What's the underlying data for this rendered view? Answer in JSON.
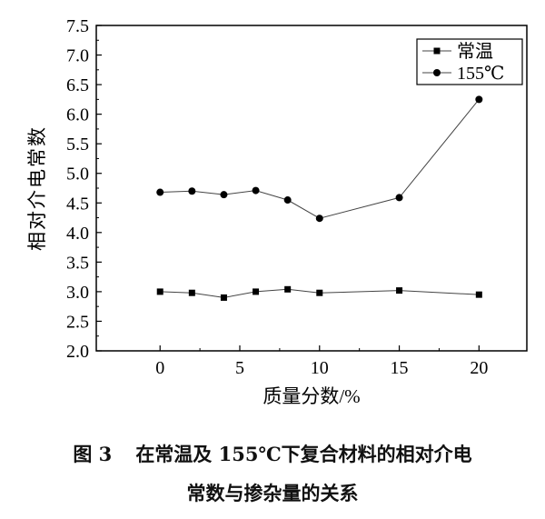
{
  "chart_data": {
    "type": "line",
    "x": [
      0,
      2,
      4,
      6,
      8,
      10,
      15,
      20
    ],
    "series": [
      {
        "name": "常温",
        "marker": "square",
        "values": [
          3.0,
          2.98,
          2.9,
          3.0,
          3.04,
          2.98,
          3.02,
          2.95
        ]
      },
      {
        "name": "155℃",
        "marker": "circle",
        "values": [
          4.68,
          4.7,
          4.64,
          4.71,
          4.55,
          4.24,
          4.59,
          6.25
        ]
      }
    ],
    "xlabel": "质量分数/%",
    "ylabel": "相对介电常数",
    "xlim": [
      -4,
      23
    ],
    "ylim": [
      2.0,
      7.5
    ],
    "xticks": [
      0,
      5,
      10,
      15,
      20
    ],
    "yticks": [
      2.0,
      2.5,
      3.0,
      3.5,
      4.0,
      4.5,
      5.0,
      5.5,
      6.0,
      6.5,
      7.0,
      7.5
    ],
    "grid": false,
    "legend": "top-right",
    "line_color": "#444444"
  },
  "caption": {
    "figure_number": "图 3",
    "line1": "在常温及 155℃下复合材料的相对介电",
    "line2": "常数与掺杂量的关系"
  }
}
